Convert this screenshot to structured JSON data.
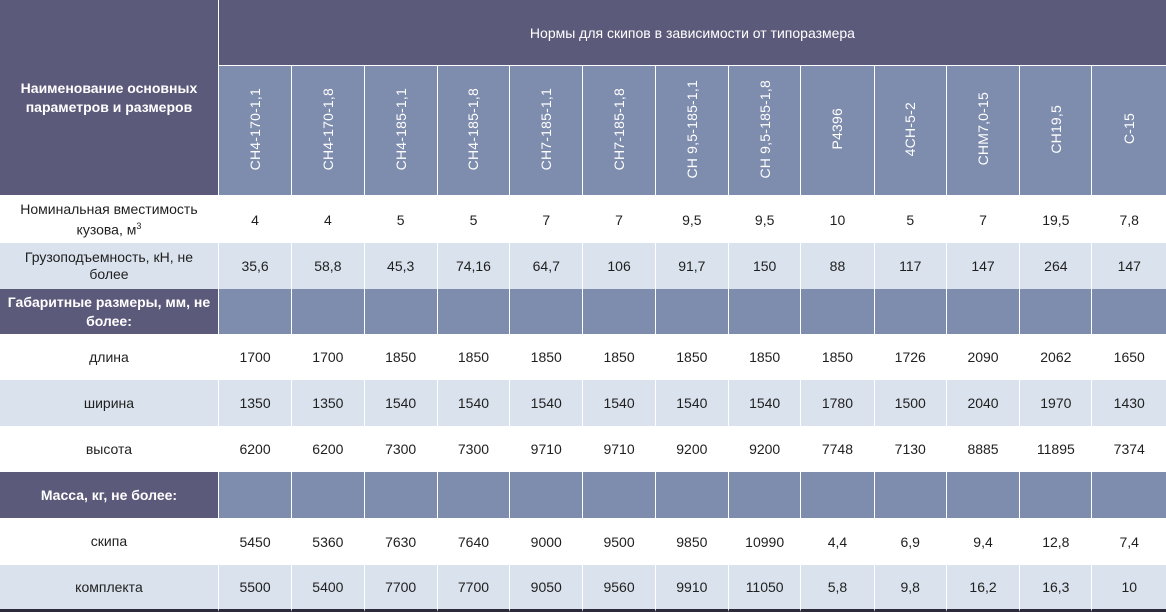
{
  "header": {
    "param_title": "Наименование основных параметров и размеров",
    "group_title": "Нормы для скипов в зависимости от типоразмера",
    "models": [
      "СН4-170-1,1",
      "СН4-170-1,8",
      "СН4-185-1,1",
      "СН4-185-1,8",
      "СН7-185-1,1",
      "СН7-185-1,8",
      "СН 9,5-185-1,1",
      "СН 9,5-185-1,8",
      "Р4396",
      "4СН-5-2",
      "СНМ7,0-15",
      "СН19,5",
      "С-15"
    ]
  },
  "rows": [
    {
      "label": "Номинальная вместимость кузова, м",
      "sup": "3",
      "values": [
        "4",
        "4",
        "5",
        "5",
        "7",
        "7",
        "9,5",
        "9,5",
        "10",
        "5",
        "7",
        "19,5",
        "7,8"
      ]
    },
    {
      "label": "Грузоподъемность, кН, не более",
      "values": [
        "35,6",
        "58,8",
        "45,3",
        "74,16",
        "64,7",
        "106",
        "91,7",
        "150",
        "88",
        "117",
        "147",
        "264",
        "147"
      ]
    },
    {
      "label": "Габаритные размеры, мм, не более:"
    },
    {
      "label": "длина",
      "values": [
        "1700",
        "1700",
        "1850",
        "1850",
        "1850",
        "1850",
        "1850",
        "1850",
        "1850",
        "1726",
        "2090",
        "2062",
        "1650"
      ]
    },
    {
      "label": "ширина",
      "values": [
        "1350",
        "1350",
        "1540",
        "1540",
        "1540",
        "1540",
        "1540",
        "1540",
        "1780",
        "1500",
        "2040",
        "1970",
        "1430"
      ]
    },
    {
      "label": "высота",
      "values": [
        "6200",
        "6200",
        "7300",
        "7300",
        "9710",
        "9710",
        "9200",
        "9200",
        "7748",
        "7130",
        "8885",
        "11895",
        "7374"
      ]
    },
    {
      "label": "Масса, кг, не более:"
    },
    {
      "label": "скипа",
      "values": [
        "5450",
        "5360",
        "7630",
        "7640",
        "9000",
        "9500",
        "9850",
        "10990",
        "4,4",
        "6,9",
        "9,4",
        "12,8",
        "7,4"
      ]
    },
    {
      "label": "комплекта",
      "values": [
        "5500",
        "5400",
        "7700",
        "7700",
        "9050",
        "9560",
        "9910",
        "11050",
        "5,8",
        "9,8",
        "16,2",
        "16,3",
        "10"
      ]
    }
  ],
  "colors": {
    "header_dark": "#5c5a7a",
    "header_light": "#7e8cad",
    "row_stripe": "#dae2ed"
  }
}
